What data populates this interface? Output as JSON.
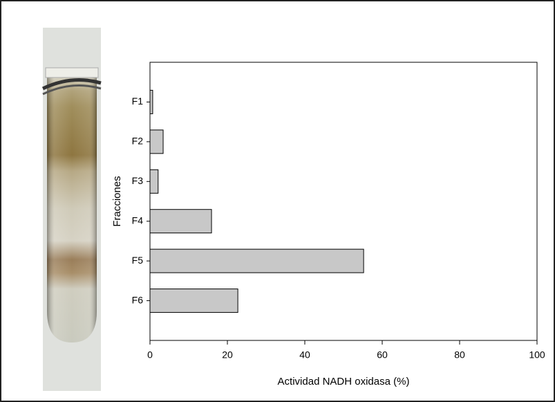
{
  "chart_data": {
    "type": "barh",
    "categories": [
      "F1",
      "F2",
      "F3",
      "F4",
      "F5",
      "F6"
    ],
    "values": [
      0.7,
      3.4,
      2.1,
      15.9,
      55.2,
      22.7
    ],
    "color": "#c8c8c8",
    "xlabel": "Actividad NADH oxidasa (%)",
    "ylabel": "Fracciones",
    "xlim": [
      0,
      100
    ],
    "xticks": [
      0,
      20,
      40,
      60,
      80,
      100
    ]
  }
}
